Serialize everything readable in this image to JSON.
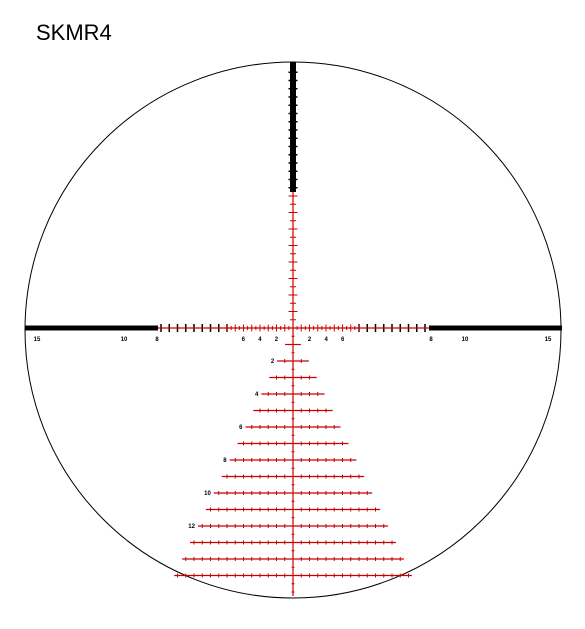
{
  "title": "SKMR4",
  "colors": {
    "red": "#cc0000",
    "black": "#000000"
  },
  "horizontal_labels": [
    "15",
    "10",
    "8",
    "6",
    "4",
    "2",
    "2",
    "4",
    "6",
    "8",
    "10",
    "15"
  ],
  "tree_labels": [
    "2",
    "4",
    "6",
    "8",
    "10",
    "12"
  ]
}
